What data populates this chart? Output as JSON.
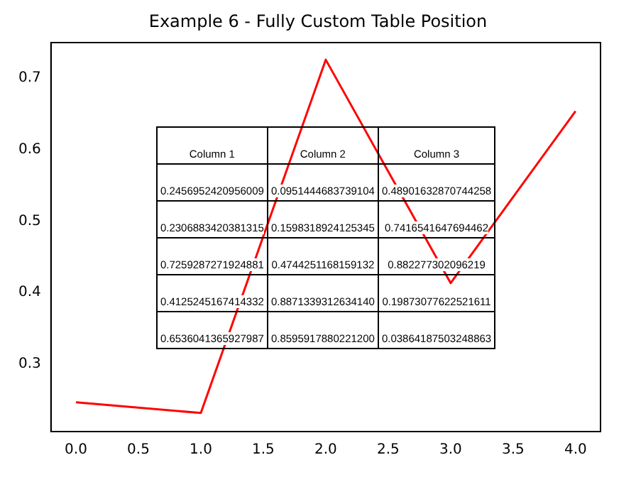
{
  "chart_data": {
    "type": "line",
    "title": "Example 6 - Fully Custom Table Position",
    "x": [
      0,
      1,
      2,
      3,
      4
    ],
    "series": [
      {
        "color": "#ff0000",
        "values": [
          0.246,
          0.231,
          0.726,
          0.413,
          0.654
        ]
      }
    ],
    "annotations": [
      "Column 1",
      "Column 2",
      "Column 3",
      "0.2456952420956009",
      "0.0951444683739104",
      "0.48901632870744258",
      "0.2306883420381315",
      "0.1598318924125345",
      "0.7416541647694462",
      "0.7259287271924881",
      "0.4744251168159132",
      "0.882277302096219",
      "0.4125245167414332",
      "0.8871339312634140",
      "0.19873077622521611",
      "0.6536041365927987",
      "0.8595917880221200",
      "0.03864187503248863"
    ],
    "xlim": [
      -0.2,
      4.2
    ],
    "xticks": [
      {
        "value": 0,
        "label": "0.0"
      },
      {
        "value": 0.5,
        "label": "0.5"
      },
      {
        "value": 1,
        "label": "1.0"
      },
      {
        "value": 1.5,
        "label": "1.5"
      },
      {
        "value": 2,
        "label": "2.0"
      },
      {
        "value": 2.5,
        "label": "2.5"
      },
      {
        "value": 3,
        "label": "3.0"
      },
      {
        "value": 3.5,
        "label": "3.5"
      },
      {
        "value": 4,
        "label": "4.0"
      }
    ],
    "ylim": [
      0.205,
      0.75
    ],
    "yticks": [
      0.3,
      0.4,
      0.5,
      0.6,
      0.7
    ],
    "grid": false,
    "legend": false,
    "marker": "none",
    "line_style": "solid"
  }
}
